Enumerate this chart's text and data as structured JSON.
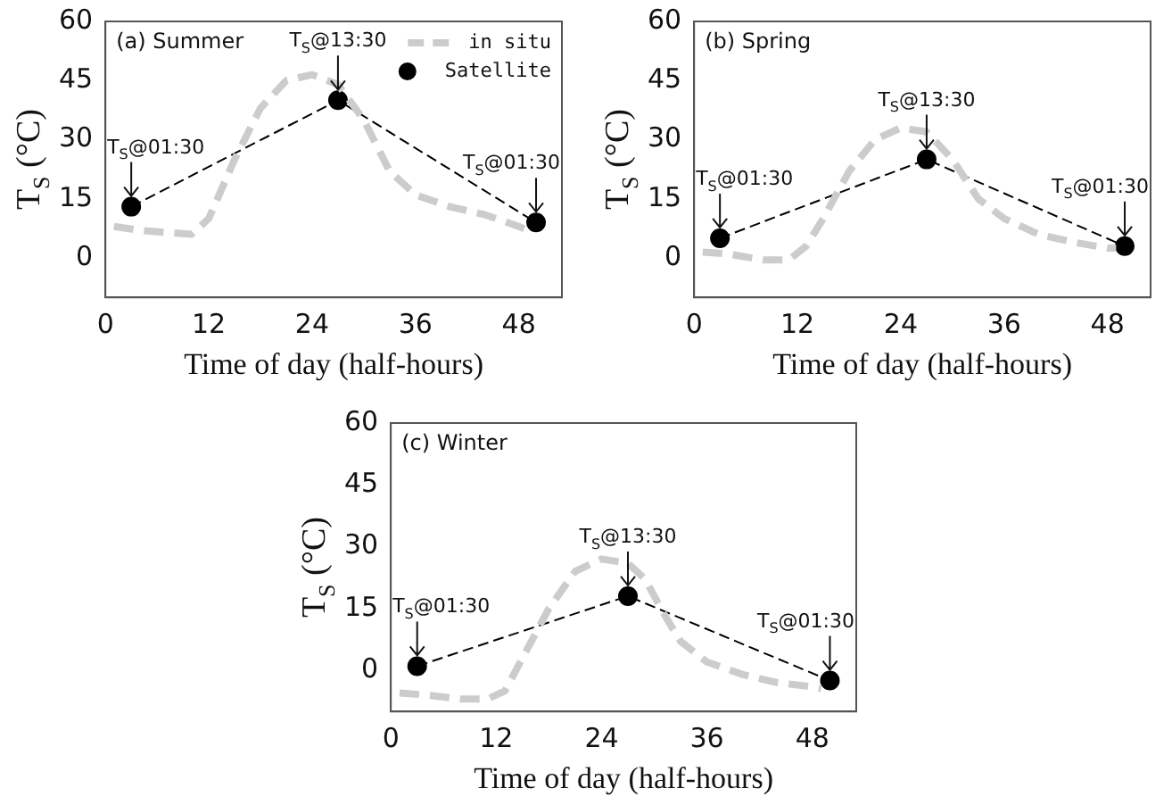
{
  "chart_data": [
    {
      "type": "line",
      "title": "(a) Summer",
      "xlabel": "Time of day (half-hours)",
      "ylabel": "T$_{S}$ (°C)",
      "xlim": [
        0,
        53
      ],
      "xticks": [
        0,
        12,
        24,
        36,
        48
      ],
      "ylim": [
        -10,
        60
      ],
      "yticks": [
        0,
        15,
        30,
        45,
        60
      ],
      "grid": false,
      "legend": "top right",
      "series": [
        {
          "name": "in situ",
          "color": "#cccccc",
          "line_style": "dashed",
          "marker": "none",
          "x": [
            1,
            4,
            10,
            12,
            15,
            18,
            21,
            24,
            27,
            30,
            33,
            36,
            40,
            44,
            48,
            49
          ],
          "values": [
            8,
            7,
            6,
            10,
            25,
            38,
            45,
            46.5,
            44,
            35,
            22,
            16,
            13,
            11,
            8,
            7
          ]
        },
        {
          "name": "Satellite",
          "color": "#000000",
          "line_style": "dashed",
          "marker": "circle",
          "x": [
            3,
            27,
            50
          ],
          "values": [
            13,
            40,
            9
          ]
        }
      ],
      "annotations": [
        {
          "text": "T$_{S}$@01:30",
          "x": 3,
          "y": 13
        },
        {
          "text": "T$_{S}$@13:30",
          "x": 27,
          "y": 40
        },
        {
          "text": "T$_{S}$@01:30",
          "x": 50,
          "y": 9
        }
      ]
    },
    {
      "type": "line",
      "title": "(b) Spring",
      "xlabel": "Time of day (half-hours)",
      "ylabel": "T$_{S}$ (°C)",
      "xlim": [
        0,
        53
      ],
      "xticks": [
        0,
        12,
        24,
        36,
        48
      ],
      "ylim": [
        -10,
        60
      ],
      "yticks": [
        0,
        15,
        30,
        45,
        60
      ],
      "grid": false,
      "legend": false,
      "series": [
        {
          "color": "#cccccc",
          "line_style": "dashed",
          "marker": "none",
          "x": [
            1,
            4,
            8,
            11,
            13,
            15,
            18,
            21,
            24,
            27,
            30,
            33,
            36,
            40,
            44,
            48,
            49
          ],
          "values": [
            1.5,
            1,
            -0.5,
            -0.5,
            3,
            10,
            22,
            30,
            33,
            32,
            25,
            15,
            10,
            6,
            4,
            2.5,
            2.5
          ]
        },
        {
          "color": "#000000",
          "line_style": "dashed",
          "marker": "circle",
          "x": [
            3,
            27,
            50
          ],
          "values": [
            5,
            25,
            3
          ]
        }
      ],
      "annotations": [
        {
          "text": "T$_{S}$@01:30",
          "x": 3,
          "y": 5
        },
        {
          "text": "T$_{S}$@13:30",
          "x": 27,
          "y": 25
        },
        {
          "text": "T$_{S}$@01:30",
          "x": 50,
          "y": 3
        }
      ]
    },
    {
      "type": "line",
      "title": "(c) Winter",
      "xlabel": "Time of day (half-hours)",
      "ylabel": "T$_{S}$ (°C)",
      "xlim": [
        0,
        53
      ],
      "xticks": [
        0,
        12,
        24,
        36,
        48
      ],
      "ylim": [
        -10,
        60
      ],
      "yticks": [
        0,
        15,
        30,
        45,
        60
      ],
      "grid": false,
      "legend": false,
      "series": [
        {
          "color": "#cccccc",
          "line_style": "dashed",
          "marker": "none",
          "x": [
            1,
            4,
            8,
            11,
            13,
            15,
            18,
            21,
            24,
            27,
            29,
            31,
            33,
            36,
            40,
            44,
            48,
            49
          ],
          "values": [
            -5.5,
            -6,
            -7,
            -7,
            -5,
            3,
            15,
            24,
            27,
            26,
            22,
            14,
            7,
            2,
            -1,
            -3,
            -4,
            -4.5
          ]
        },
        {
          "color": "#000000",
          "line_style": "dashed",
          "marker": "circle",
          "x": [
            3,
            27,
            50
          ],
          "values": [
            1,
            18,
            -2.5
          ]
        }
      ],
      "annotations": [
        {
          "text": "T$_{S}$@01:30",
          "x": 3,
          "y": 1
        },
        {
          "text": "T$_{S}$@13:30",
          "x": 27,
          "y": 18
        },
        {
          "text": "T$_{S}$@01:30",
          "x": 50,
          "y": -2.5
        }
      ]
    }
  ]
}
